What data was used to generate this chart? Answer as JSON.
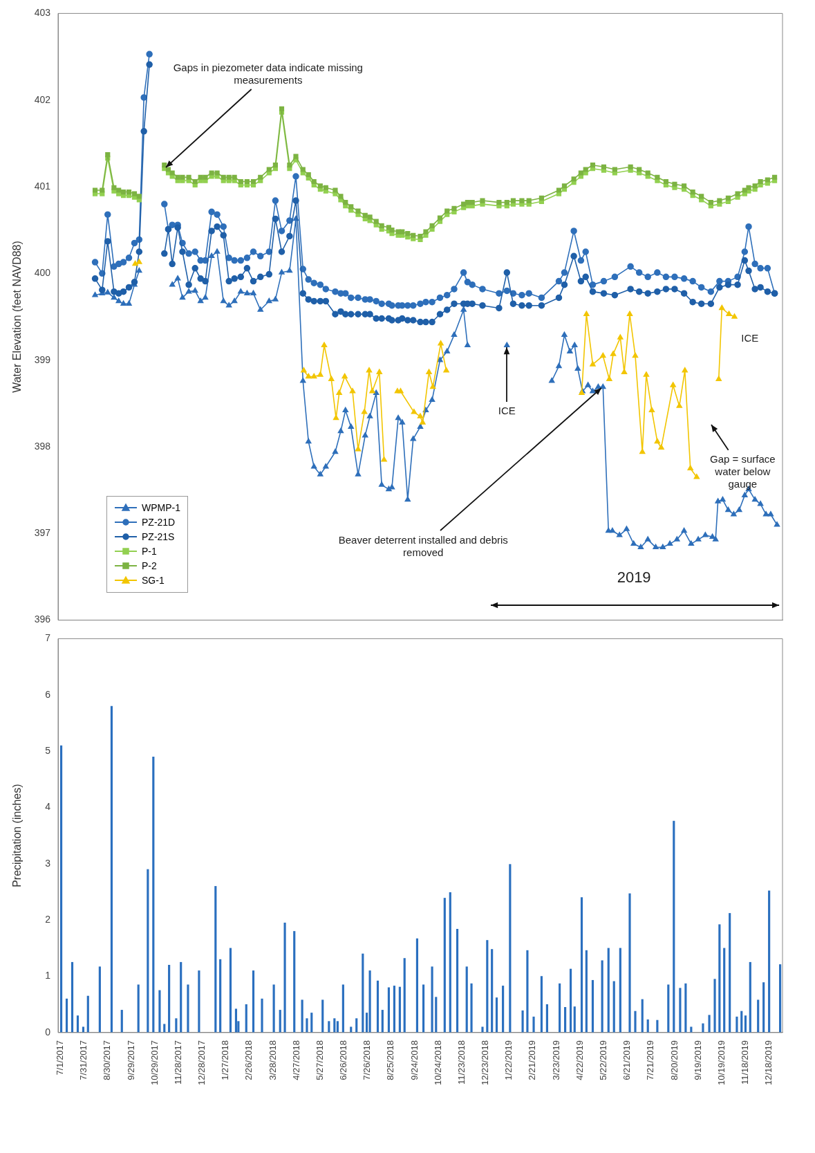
{
  "chart_data": [
    {
      "type": "line",
      "ylabel": "Water Elevation (feet NAVD88)",
      "xlim": [
        "2017-06-28",
        "2020-01-04"
      ],
      "ylim": [
        396,
        403
      ],
      "yticks": [
        396,
        397,
        398,
        399,
        400,
        401,
        402,
        403
      ],
      "tick_labels": "y",
      "legend": "bottom left",
      "x": [
        "2017-08-14",
        "2017-08-23",
        "2017-08-30",
        "2017-09-07",
        "2017-09-13",
        "2017-09-19",
        "2017-09-26",
        "2017-10-03",
        "2017-10-09",
        "2017-10-15",
        "2017-10-22",
        "2017-10-30",
        "2017-11-10",
        "2017-11-15",
        "2017-11-20",
        "2017-11-27",
        "2017-12-03",
        "2017-12-11",
        "2017-12-19",
        "2017-12-26",
        "2018-01-01",
        "2018-01-09",
        "2018-01-16",
        "2018-01-24",
        "2018-01-31",
        "2018-02-07",
        "2018-02-15",
        "2018-02-23",
        "2018-03-03",
        "2018-03-12",
        "2018-03-23",
        "2018-03-31",
        "2018-04-08",
        "2018-04-18",
        "2018-04-26",
        "2018-05-05",
        "2018-05-12",
        "2018-05-19",
        "2018-05-27",
        "2018-06-03",
        "2018-06-15",
        "2018-06-22",
        "2018-06-28",
        "2018-07-05",
        "2018-07-14",
        "2018-07-23",
        "2018-07-29",
        "2018-08-06",
        "2018-08-13",
        "2018-08-22",
        "2018-08-26",
        "2018-09-03",
        "2018-09-08",
        "2018-09-15",
        "2018-09-22",
        "2018-10-01",
        "2018-10-08",
        "2018-10-16",
        "2018-10-26",
        "2018-11-04",
        "2018-11-13",
        "2018-11-25",
        "2018-11-30",
        "2018-12-06",
        "2018-12-19",
        "2019-01-09",
        "2019-01-19",
        "2019-01-27",
        "2019-02-07",
        "2019-02-16",
        "2019-03-04",
        "2019-03-26",
        "2019-04-02",
        "2019-04-14",
        "2019-04-23",
        "2019-04-29",
        "2019-05-08",
        "2019-05-22",
        "2019-06-05",
        "2019-06-25",
        "2019-07-06",
        "2019-07-17",
        "2019-07-29",
        "2019-08-09",
        "2019-08-20",
        "2019-09-01",
        "2019-09-12",
        "2019-09-23",
        "2019-10-05",
        "2019-10-16",
        "2019-10-27",
        "2019-11-08",
        "2019-11-17",
        "2019-11-22",
        "2019-11-30",
        "2019-12-07",
        "2019-12-16",
        "2019-12-25"
      ],
      "series": [
        {
          "name": "WPMP-1",
          "color": "#2e6fba",
          "marker": "triangle",
          "x": [
            "2017-08-14",
            "2017-08-23",
            "2017-08-30",
            "2017-09-07",
            "2017-09-13",
            "2017-09-19",
            "2017-09-26",
            "2017-10-03",
            "2017-10-09",
            "2017-10-30",
            "2017-11-20",
            "2017-11-27",
            "2017-12-03",
            "2017-12-11",
            "2017-12-19",
            "2017-12-26",
            "2018-01-01",
            "2018-01-09",
            "2018-01-16",
            "2018-01-24",
            "2018-01-31",
            "2018-02-07",
            "2018-02-15",
            "2018-02-23",
            "2018-03-03",
            "2018-03-12",
            "2018-03-23",
            "2018-03-31",
            "2018-04-08",
            "2018-04-18",
            "2018-04-26",
            "2018-05-05",
            "2018-05-12",
            "2018-05-19",
            "2018-05-27",
            "2018-06-03",
            "2018-06-15",
            "2018-06-22",
            "2018-06-28",
            "2018-07-05",
            "2018-07-14",
            "2018-07-23",
            "2018-07-29",
            "2018-08-06",
            "2018-08-13",
            "2018-08-22",
            "2018-08-26",
            "2018-09-03",
            "2018-09-08",
            "2018-09-15",
            "2018-09-22",
            "2018-10-01",
            "2018-10-08",
            "2018-10-16",
            "2018-10-26",
            "2018-11-04",
            "2018-11-13",
            "2018-11-25",
            "2018-11-30",
            "2018-12-20",
            "2019-01-19",
            "2019-02-20",
            "2019-03-17",
            "2019-03-26",
            "2019-04-02",
            "2019-04-09",
            "2019-04-15",
            "2019-04-19",
            "2019-04-25",
            "2019-05-02",
            "2019-05-08",
            "2019-05-15",
            "2019-05-21",
            "2019-05-28",
            "2019-06-02",
            "2019-06-11",
            "2019-06-20",
            "2019-06-29",
            "2019-07-08",
            "2019-07-17",
            "2019-07-27",
            "2019-08-05",
            "2019-08-14",
            "2019-08-23",
            "2019-09-01",
            "2019-09-10",
            "2019-09-19",
            "2019-09-28",
            "2019-10-07",
            "2019-10-11",
            "2019-10-14",
            "2019-10-20",
            "2019-10-27",
            "2019-11-03",
            "2019-11-10",
            "2019-11-17",
            "2019-11-22",
            "2019-11-30",
            "2019-12-07",
            "2019-12-14",
            "2019-12-20",
            "2019-12-28"
          ],
          "values": [
            399.75,
            399.77,
            399.78,
            399.72,
            399.68,
            399.65,
            399.65,
            399.87,
            400.03,
            null,
            399.87,
            399.94,
            399.72,
            399.79,
            399.8,
            399.68,
            399.72,
            400.2,
            400.25,
            399.68,
            399.63,
            399.68,
            399.79,
            399.77,
            399.77,
            399.58,
            399.68,
            399.7,
            400.01,
            400.03,
            400.63,
            398.76,
            398.06,
            397.77,
            397.68,
            397.77,
            397.94,
            398.18,
            398.42,
            398.23,
            397.68,
            398.13,
            398.35,
            398.62,
            397.56,
            397.51,
            397.53,
            398.33,
            398.28,
            397.39,
            398.09,
            398.23,
            398.42,
            398.54,
            399.0,
            399.1,
            399.29,
            399.58,
            399.17,
            null,
            399.17,
            null,
            398.76,
            398.93,
            399.29,
            399.1,
            399.17,
            398.9,
            398.64,
            398.71,
            398.64,
            398.69,
            398.69,
            397.03,
            397.03,
            396.98,
            397.05,
            396.88,
            396.84,
            396.93,
            396.84,
            396.84,
            396.88,
            396.93,
            397.03,
            396.88,
            396.93,
            396.98,
            396.96,
            396.93,
            397.37,
            397.39,
            397.27,
            397.22,
            397.27,
            397.44,
            397.51,
            397.39,
            397.34,
            397.22,
            397.22,
            397.1
          ]
        },
        {
          "name": "PZ-21D",
          "color": "#2e6fba",
          "marker": "circle",
          "values": [
            400.13,
            400.0,
            400.68,
            400.08,
            400.11,
            400.13,
            400.18,
            400.35,
            400.39,
            402.03,
            402.53,
            null,
            400.8,
            400.51,
            400.56,
            400.56,
            400.35,
            400.23,
            400.25,
            400.15,
            400.15,
            400.71,
            400.68,
            400.54,
            400.18,
            400.15,
            400.15,
            400.18,
            400.25,
            400.2,
            400.25,
            400.84,
            400.49,
            400.61,
            401.12,
            400.05,
            399.93,
            399.89,
            399.87,
            399.82,
            399.79,
            399.77,
            399.77,
            399.72,
            399.72,
            399.7,
            399.7,
            399.68,
            399.65,
            399.65,
            399.63,
            399.63,
            399.63,
            399.63,
            399.63,
            399.65,
            399.67,
            399.67,
            399.72,
            399.75,
            399.82,
            400.01,
            399.9,
            399.87,
            399.82,
            399.77,
            399.8,
            399.77,
            399.75,
            399.77,
            399.72,
            399.91,
            400.01,
            400.49,
            400.15,
            400.25,
            399.87,
            399.91,
            399.96,
            400.08,
            400.01,
            399.96,
            400.01,
            399.96,
            399.96,
            399.94,
            399.91,
            399.84,
            399.79,
            399.91,
            399.91,
            399.96,
            400.25,
            400.54,
            400.11,
            400.06,
            400.06,
            399.77
          ]
        },
        {
          "name": "PZ-21S",
          "color": "#1f5fa8",
          "marker": "circle",
          "values": [
            399.94,
            399.81,
            400.37,
            399.79,
            399.77,
            399.79,
            399.84,
            399.9,
            400.25,
            401.64,
            402.41,
            null,
            400.23,
            400.51,
            400.11,
            400.53,
            400.25,
            399.87,
            400.06,
            399.94,
            399.91,
            400.49,
            400.54,
            400.44,
            399.91,
            399.94,
            399.96,
            400.06,
            399.91,
            399.96,
            399.99,
            400.63,
            400.25,
            400.43,
            400.84,
            399.77,
            399.7,
            399.68,
            399.68,
            399.68,
            399.53,
            399.56,
            399.53,
            399.53,
            399.53,
            399.53,
            399.53,
            399.48,
            399.48,
            399.48,
            399.46,
            399.46,
            399.48,
            399.46,
            399.46,
            399.44,
            399.44,
            399.44,
            399.53,
            399.58,
            399.65,
            399.65,
            399.65,
            399.65,
            399.63,
            399.6,
            400.01,
            399.65,
            399.63,
            399.63,
            399.63,
            399.72,
            399.87,
            400.2,
            399.91,
            399.96,
            399.79,
            399.77,
            399.75,
            399.82,
            399.79,
            399.77,
            399.79,
            399.82,
            399.82,
            399.77,
            399.67,
            399.65,
            399.65,
            399.84,
            399.87,
            399.87,
            400.15,
            400.03,
            399.82,
            399.84,
            399.79,
            399.77
          ]
        },
        {
          "name": "P-1",
          "color": "#92d050",
          "marker": "square",
          "values": [
            400.92,
            400.92,
            401.33,
            400.95,
            400.92,
            400.9,
            400.9,
            400.88,
            400.85,
            null,
            null,
            null,
            401.21,
            401.16,
            401.12,
            401.07,
            401.07,
            401.07,
            401.02,
            401.07,
            401.07,
            401.12,
            401.12,
            401.07,
            401.07,
            401.07,
            401.02,
            401.02,
            401.02,
            401.07,
            401.16,
            401.21,
            401.86,
            401.21,
            401.31,
            401.16,
            401.1,
            401.02,
            400.97,
            400.95,
            400.92,
            400.85,
            400.78,
            400.73,
            400.68,
            400.63,
            400.61,
            400.56,
            400.51,
            400.49,
            400.46,
            400.44,
            400.44,
            400.42,
            400.4,
            400.39,
            400.44,
            400.51,
            400.6,
            400.68,
            400.71,
            400.76,
            400.78,
            400.78,
            400.8,
            400.78,
            400.78,
            400.8,
            400.8,
            400.8,
            400.83,
            400.92,
            400.97,
            401.05,
            401.12,
            401.16,
            401.21,
            401.19,
            401.16,
            401.19,
            401.16,
            401.12,
            401.07,
            401.02,
            400.99,
            400.97,
            400.9,
            400.85,
            400.78,
            400.8,
            400.83,
            400.88,
            400.92,
            400.95,
            400.97,
            401.02,
            401.04,
            401.07
          ]
        },
        {
          "name": "P-2",
          "color": "#7cb342",
          "marker": "square",
          "values": [
            400.96,
            400.96,
            401.37,
            400.99,
            400.96,
            400.94,
            400.94,
            400.92,
            400.89,
            null,
            null,
            null,
            401.25,
            401.2,
            401.16,
            401.11,
            401.11,
            401.11,
            401.06,
            401.11,
            401.11,
            401.16,
            401.16,
            401.11,
            401.11,
            401.11,
            401.06,
            401.06,
            401.06,
            401.11,
            401.2,
            401.25,
            401.9,
            401.25,
            401.35,
            401.2,
            401.14,
            401.06,
            401.01,
            400.99,
            400.96,
            400.89,
            400.82,
            400.77,
            400.72,
            400.67,
            400.65,
            400.6,
            400.55,
            400.53,
            400.5,
            400.48,
            400.48,
            400.46,
            400.44,
            400.43,
            400.48,
            400.55,
            400.64,
            400.72,
            400.75,
            400.8,
            400.82,
            400.82,
            400.84,
            400.82,
            400.82,
            400.84,
            400.84,
            400.84,
            400.87,
            400.96,
            401.01,
            401.09,
            401.16,
            401.2,
            401.25,
            401.23,
            401.2,
            401.23,
            401.2,
            401.16,
            401.11,
            401.06,
            401.03,
            401.01,
            400.94,
            400.89,
            400.82,
            400.84,
            400.87,
            400.92,
            400.96,
            400.99,
            401.01,
            401.06,
            401.08,
            401.11
          ]
        },
        {
          "name": "SG-1",
          "color": "#f2c500",
          "marker": "triangle",
          "x": [
            "2017-10-04",
            "2017-10-09",
            "2017-11-01",
            "2018-05-06",
            "2018-05-12",
            "2018-05-19",
            "2018-05-27",
            "2018-06-01",
            "2018-06-10",
            "2018-06-16",
            "2018-06-20",
            "2018-06-27",
            "2018-07-07",
            "2018-07-14",
            "2018-07-22",
            "2018-07-28",
            "2018-08-01",
            "2018-08-10",
            "2018-08-16",
            "2018-08-24",
            "2018-09-02",
            "2018-09-06",
            "2018-09-23",
            "2018-10-01",
            "2018-10-04",
            "2018-10-12",
            "2018-10-17",
            "2018-10-27",
            "2018-11-03",
            "2018-12-01",
            "2019-04-24",
            "2019-04-30",
            "2019-05-08",
            "2019-05-21",
            "2019-05-29",
            "2019-06-03",
            "2019-06-12",
            "2019-06-17",
            "2019-06-24",
            "2019-07-01",
            "2019-07-10",
            "2019-07-15",
            "2019-07-22",
            "2019-07-29",
            "2019-08-03",
            "2019-08-18",
            "2019-08-26",
            "2019-09-02",
            "2019-09-09",
            "2019-09-17",
            "2019-10-01",
            "2019-10-15",
            "2019-10-19",
            "2019-10-28",
            "2019-11-04"
          ],
          "values": [
            400.11,
            400.13,
            null,
            398.88,
            398.81,
            398.81,
            398.83,
            399.17,
            398.78,
            398.33,
            398.62,
            398.81,
            398.64,
            397.97,
            398.4,
            398.88,
            398.64,
            398.86,
            397.85,
            null,
            398.64,
            398.64,
            398.4,
            398.35,
            398.28,
            398.86,
            398.69,
            399.19,
            398.88,
            null,
            398.62,
            399.53,
            398.95,
            399.05,
            398.78,
            399.07,
            399.26,
            398.86,
            399.53,
            399.05,
            397.94,
            398.83,
            398.42,
            398.06,
            397.99,
            398.71,
            398.47,
            398.88,
            397.75,
            397.65,
            null,
            398.78,
            399.6,
            399.53,
            399.5
          ]
        }
      ],
      "annotations": [
        {
          "text": "Gaps in piezometer data indicate missing measurements",
          "x": "2017-11-10",
          "y": 401.21
        },
        {
          "text": "ICE",
          "x": "2019-01-19",
          "y": 399.17
        },
        {
          "text": "Beaver deterrent installed and debris removed",
          "x": "2019-05-21",
          "y": 398.69
        },
        "ICE",
        "Gap = surface water below gauge",
        "2019"
      ]
    },
    {
      "type": "bar",
      "ylabel": "Precipitation (inches)",
      "color": "#2a6fbf",
      "xlim": [
        "2017-06-28",
        "2020-01-04"
      ],
      "ylim": [
        0,
        7
      ],
      "yticks": [
        0,
        1,
        2,
        3,
        4,
        5,
        6,
        7
      ],
      "xticks": [
        {
          "value": "2017-07-01",
          "label": "7/1/2017"
        },
        {
          "value": "2017-07-31",
          "label": "7/31/2017"
        },
        {
          "value": "2017-08-30",
          "label": "8/30/2017"
        },
        {
          "value": "2017-09-29",
          "label": "9/29/2017"
        },
        {
          "value": "2017-10-29",
          "label": "10/29/2017"
        },
        {
          "value": "2017-11-28",
          "label": "11/28/2017"
        },
        {
          "value": "2017-12-28",
          "label": "12/28/2017"
        },
        {
          "value": "2018-01-27",
          "label": "1/27/2018"
        },
        {
          "value": "2018-02-26",
          "label": "2/26/2018"
        },
        {
          "value": "2018-03-28",
          "label": "3/28/2018"
        },
        {
          "value": "2018-04-27",
          "label": "4/27/2018"
        },
        {
          "value": "2018-05-27",
          "label": "5/27/2018"
        },
        {
          "value": "2018-06-26",
          "label": "6/26/2018"
        },
        {
          "value": "2018-07-26",
          "label": "7/26/2018"
        },
        {
          "value": "2018-08-25",
          "label": "8/25/2018"
        },
        {
          "value": "2018-09-24",
          "label": "9/24/2018"
        },
        {
          "value": "2018-10-24",
          "label": "10/24/2018"
        },
        {
          "value": "2018-11-23",
          "label": "11/23/2018"
        },
        {
          "value": "2018-12-23",
          "label": "12/23/2018"
        },
        {
          "value": "2019-01-22",
          "label": "1/22/2019"
        },
        {
          "value": "2019-02-21",
          "label": "2/21/2019"
        },
        {
          "value": "2019-03-23",
          "label": "3/23/2019"
        },
        {
          "value": "2019-04-22",
          "label": "4/22/2019"
        },
        {
          "value": "2019-05-22",
          "label": "5/22/2019"
        },
        {
          "value": "2019-06-21",
          "label": "6/21/2019"
        },
        {
          "value": "2019-07-21",
          "label": "7/21/2019"
        },
        {
          "value": "2019-08-20",
          "label": "8/20/2019"
        },
        {
          "value": "2019-09-19",
          "label": "9/19/2019"
        },
        {
          "value": "2019-10-19",
          "label": "10/19/2019"
        },
        {
          "value": "2019-11-18",
          "label": "11/18/2019"
        },
        {
          "value": "2019-12-18",
          "label": "12/18/2019"
        }
      ],
      "x": [
        "2017-07-02",
        "2017-07-09",
        "2017-07-16",
        "2017-07-23",
        "2017-07-30",
        "2017-08-05",
        "2017-08-20",
        "2017-09-04",
        "2017-09-17",
        "2017-10-08",
        "2017-10-20",
        "2017-10-27",
        "2017-11-04",
        "2017-11-10",
        "2017-11-16",
        "2017-11-25",
        "2017-12-01",
        "2017-12-10",
        "2017-12-24",
        "2018-01-14",
        "2018-01-20",
        "2018-02-02",
        "2018-02-09",
        "2018-02-12",
        "2018-02-22",
        "2018-03-03",
        "2018-03-14",
        "2018-03-29",
        "2018-04-06",
        "2018-04-12",
        "2018-04-24",
        "2018-05-04",
        "2018-05-10",
        "2018-05-16",
        "2018-05-30",
        "2018-06-07",
        "2018-06-14",
        "2018-06-18",
        "2018-06-25",
        "2018-07-05",
        "2018-07-12",
        "2018-07-20",
        "2018-07-25",
        "2018-07-29",
        "2018-08-08",
        "2018-08-14",
        "2018-08-22",
        "2018-08-29",
        "2018-09-05",
        "2018-09-11",
        "2018-09-27",
        "2018-10-05",
        "2018-10-16",
        "2018-10-21",
        "2018-11-01",
        "2018-11-08",
        "2018-11-17",
        "2018-11-29",
        "2018-12-05",
        "2018-12-19",
        "2018-12-25",
        "2018-12-31",
        "2019-01-06",
        "2019-01-14",
        "2019-01-23",
        "2019-02-08",
        "2019-02-14",
        "2019-02-22",
        "2019-03-04",
        "2019-03-11",
        "2019-03-27",
        "2019-04-03",
        "2019-04-10",
        "2019-04-15",
        "2019-04-24",
        "2019-04-30",
        "2019-05-08",
        "2019-05-20",
        "2019-05-28",
        "2019-06-04",
        "2019-06-12",
        "2019-06-24",
        "2019-07-01",
        "2019-07-10",
        "2019-07-17",
        "2019-07-29",
        "2019-08-12",
        "2019-08-19",
        "2019-08-27",
        "2019-09-03",
        "2019-09-10",
        "2019-09-25",
        "2019-10-03",
        "2019-10-10",
        "2019-10-16",
        "2019-10-22",
        "2019-10-29",
        "2019-11-07",
        "2019-11-13",
        "2019-11-18",
        "2019-11-24",
        "2019-12-04",
        "2019-12-11",
        "2019-12-18",
        "2020-01-01"
      ],
      "values": [
        5.1,
        0.6,
        1.25,
        0.3,
        0.1,
        0.65,
        1.17,
        5.8,
        0.4,
        0.85,
        2.9,
        4.9,
        0.75,
        0.15,
        1.2,
        0.25,
        1.25,
        0.85,
        1.1,
        2.6,
        1.3,
        1.5,
        0.42,
        0.2,
        0.5,
        1.1,
        0.6,
        0.85,
        0.4,
        1.95,
        1.8,
        0.58,
        0.25,
        0.35,
        0.58,
        0.2,
        0.25,
        0.2,
        0.85,
        0.1,
        0.25,
        1.4,
        0.35,
        1.1,
        0.92,
        0.4,
        0.8,
        0.83,
        0.81,
        1.32,
        1.67,
        0.85,
        1.17,
        0.63,
        2.39,
        2.49,
        1.84,
        1.17,
        0.87,
        0.1,
        1.64,
        1.48,
        0.62,
        0.83,
        2.99,
        0.39,
        1.46,
        0.28,
        1.0,
        0.5,
        0.87,
        0.45,
        1.13,
        0.46,
        2.4,
        1.46,
        0.93,
        1.28,
        1.5,
        0.91,
        1.5,
        2.47,
        0.38,
        0.59,
        0.23,
        0.22,
        0.85,
        3.76,
        0.79,
        0.87,
        0.1,
        0.16,
        0.31,
        0.95,
        1.92,
        1.5,
        2.12,
        0.28,
        0.38,
        0.3,
        1.25,
        0.58,
        0.89,
        2.52,
        1.21
      ]
    }
  ]
}
